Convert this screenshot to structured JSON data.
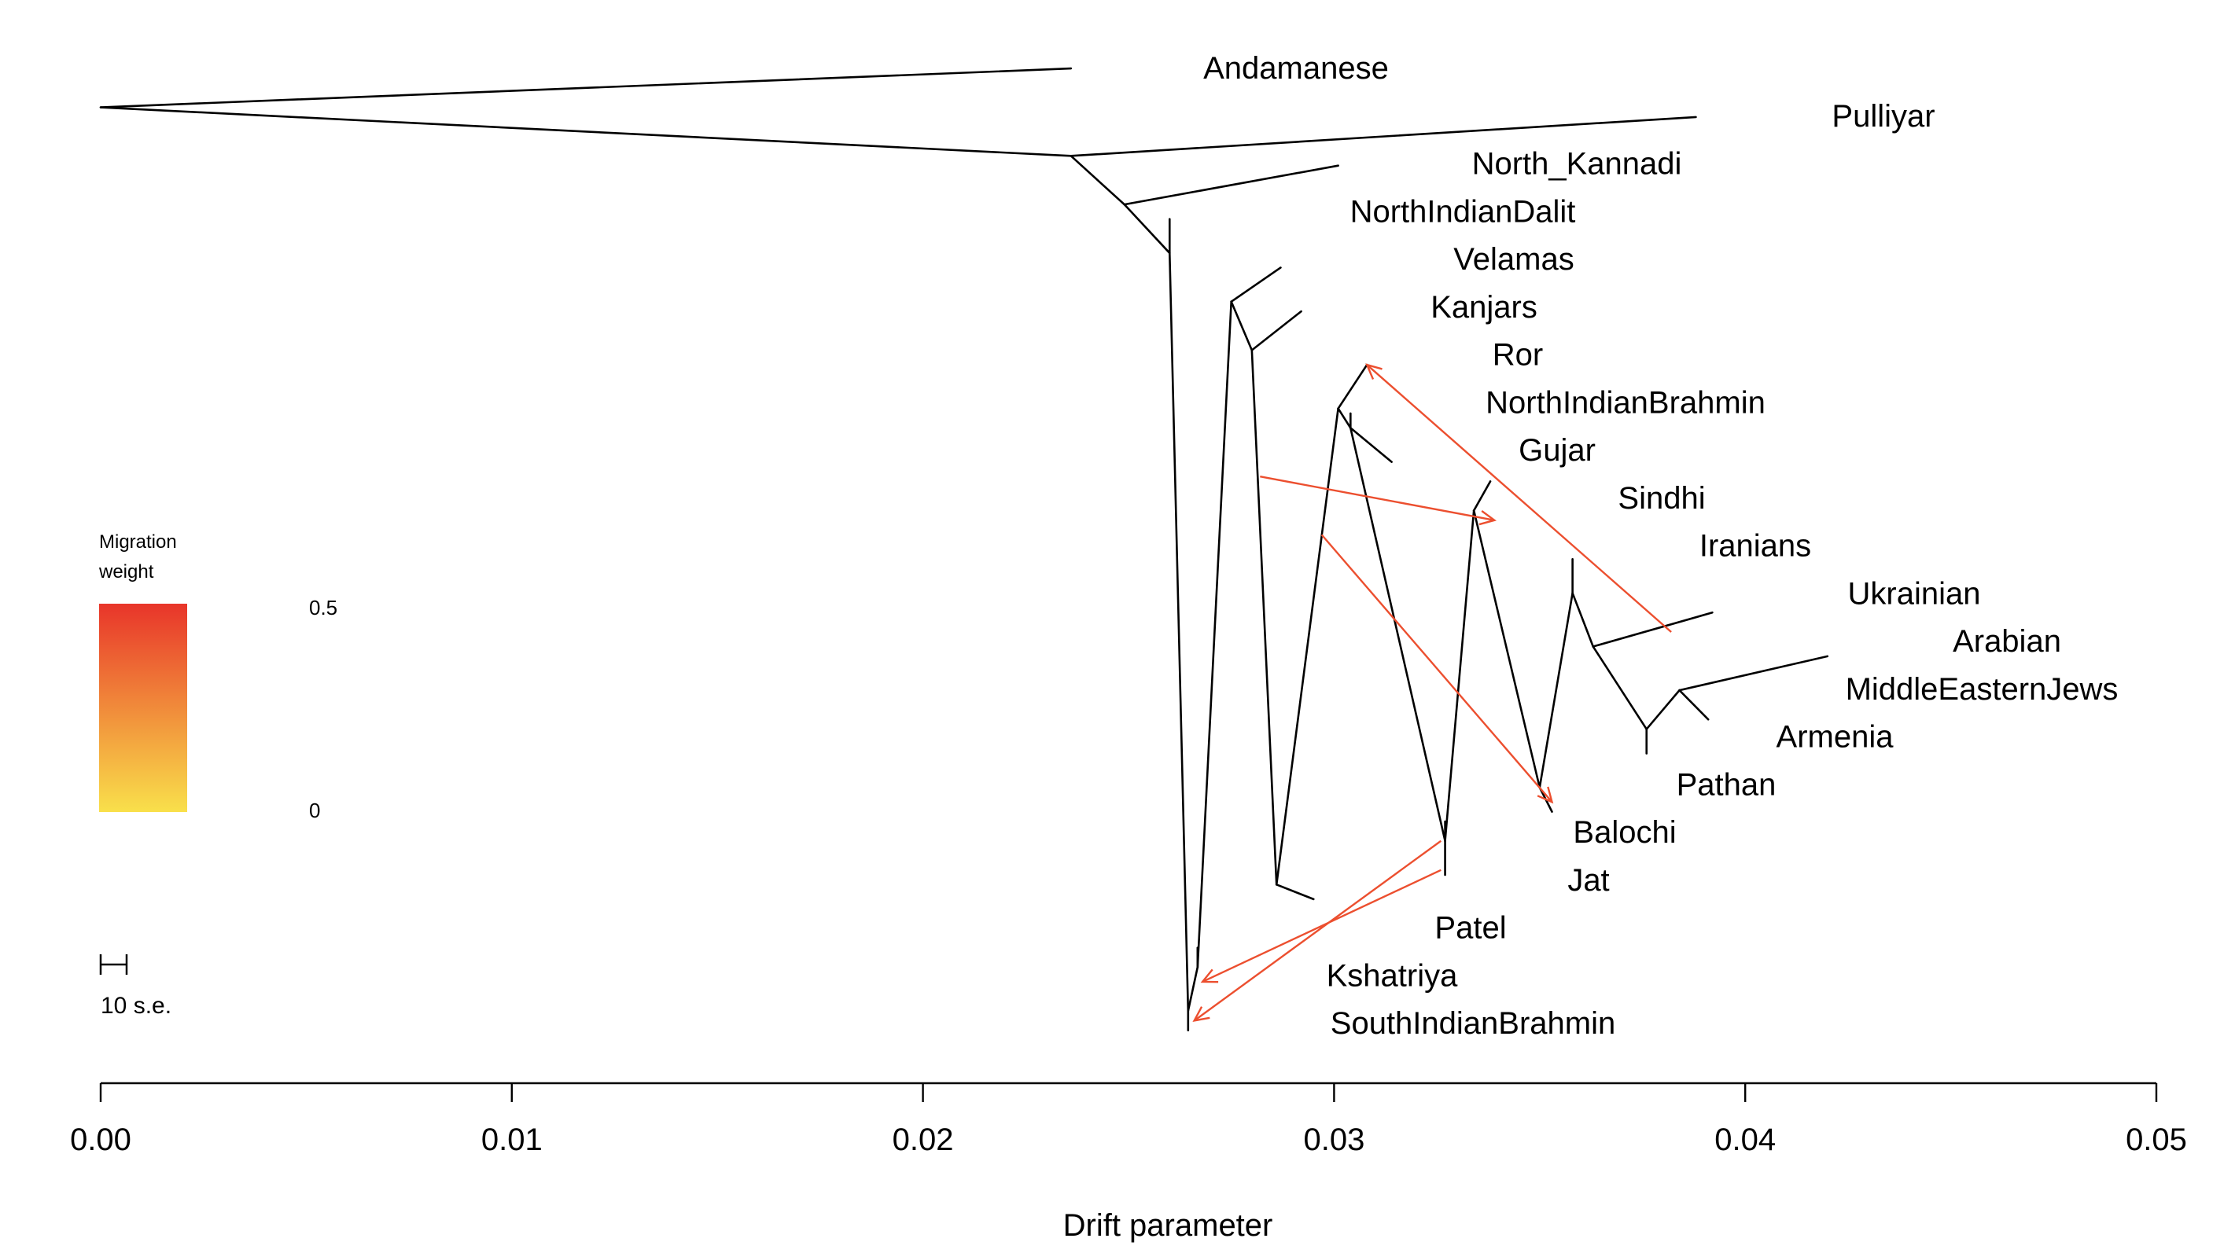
{
  "chart_data": {
    "type": "tree",
    "title": "",
    "xlabel": "Drift parameter",
    "xlim": [
      0.0,
      0.05
    ],
    "x_ticks": [
      0.0,
      0.01,
      0.02,
      0.03,
      0.04,
      0.05
    ],
    "x_tick_labels": [
      "0.00",
      "0.01",
      "0.02",
      "0.03",
      "0.04",
      "0.05"
    ],
    "legend": {
      "title_line1": "Migration",
      "title_line2": "weight",
      "max_label": "0.5",
      "min_label": "0",
      "color_low": "#f9e04b",
      "color_high": "#e8352a"
    },
    "scale_bar_label": "10 s.e.",
    "edge_color": "#000000",
    "migration_color": "#ec4f2f",
    "nodes": {
      "root": {
        "drift": 0.0,
        "row": 0.3
      },
      "n1": {
        "drift": 0.0236,
        "row": 1.3
      },
      "n2": {
        "drift": 0.0249,
        "row": 2.3
      },
      "n3": {
        "drift": 0.026,
        "row": 3.3
      },
      "n4": {
        "drift": 0.02645,
        "row": 18.9
      },
      "n5": {
        "drift": 0.02668,
        "row": 18.0
      },
      "n6": {
        "drift": 0.0275,
        "row": 4.3
      },
      "n7": {
        "drift": 0.028,
        "row": 5.3
      },
      "n8": {
        "drift": 0.0286,
        "row": 16.3
      },
      "n9": {
        "drift": 0.0301,
        "row": 6.5
      },
      "n10": {
        "drift": 0.0304,
        "row": 6.9
      },
      "n11": {
        "drift": 0.0327,
        "row": 15.4
      },
      "n12": {
        "drift": 0.0334,
        "row": 8.6
      },
      "n13": {
        "drift": 0.035,
        "row": 14.3
      },
      "n14": {
        "drift": 0.0358,
        "row": 10.3
      },
      "n15": {
        "drift": 0.0363,
        "row": 11.4
      },
      "n16": {
        "drift": 0.0376,
        "row": 13.1
      },
      "n17": {
        "drift": 0.0384,
        "row": 12.3
      }
    },
    "edges": [
      [
        "root",
        "n1"
      ],
      [
        "n1",
        "n2"
      ],
      [
        "n2",
        "n3"
      ],
      [
        "n3",
        "n4"
      ],
      [
        "n4",
        "n5"
      ],
      [
        "n5",
        "n6"
      ],
      [
        "n6",
        "n7"
      ],
      [
        "n7",
        "n8"
      ],
      [
        "n8",
        "n9"
      ],
      [
        "n9",
        "n10"
      ],
      [
        "n10",
        "n11"
      ],
      [
        "n11",
        "n12"
      ],
      [
        "n12",
        "n13"
      ],
      [
        "n13",
        "n14"
      ],
      [
        "n14",
        "n15"
      ],
      [
        "n15",
        "n16"
      ],
      [
        "n16",
        "n17"
      ]
    ],
    "tips": [
      {
        "name": "Andamanese",
        "parent": "root",
        "drift": 0.0236,
        "row": -0.5
      },
      {
        "name": "Pulliyar",
        "parent": "n1",
        "drift": 0.0388,
        "row": 0.5
      },
      {
        "name": "North_Kannadi",
        "parent": "n2",
        "drift": 0.0301,
        "row": 1.5
      },
      {
        "name": "NorthIndianDalit",
        "parent": "n3",
        "drift": 0.026,
        "row": 2.6
      },
      {
        "name": "Velamas",
        "parent": "n6",
        "drift": 0.0287,
        "row": 3.6
      },
      {
        "name": "Kanjars",
        "parent": "n7",
        "drift": 0.0292,
        "row": 4.5
      },
      {
        "name": "Ror",
        "parent": "n9",
        "drift": 0.0308,
        "row": 5.6
      },
      {
        "name": "NorthIndianBrahmin",
        "parent": "n10",
        "drift": 0.0304,
        "row": 6.6
      },
      {
        "name": "Gujar",
        "parent": "n10",
        "drift": 0.0314,
        "row": 7.6
      },
      {
        "name": "Sindhi",
        "parent": "n12",
        "drift": 0.0338,
        "row": 8.0
      },
      {
        "name": "Iranians",
        "parent": "n14",
        "drift": 0.0358,
        "row": 9.6
      },
      {
        "name": "Ukrainian",
        "parent": "n15",
        "drift": 0.0392,
        "row": 10.7
      },
      {
        "name": "Arabian",
        "parent": "n17",
        "drift": 0.042,
        "row": 11.6
      },
      {
        "name": "MiddleEasternJews",
        "parent": "n17",
        "drift": 0.0391,
        "row": 12.9
      },
      {
        "name": "Armenia",
        "parent": "n16",
        "drift": 0.0376,
        "row": 13.6
      },
      {
        "name": "Pathan",
        "parent": "n13",
        "drift": 0.0353,
        "row": 14.8
      },
      {
        "name": "Balochi",
        "parent": "n11",
        "drift": 0.0327,
        "row": 15.0
      },
      {
        "name": "Jat",
        "parent": "n11",
        "drift": 0.0327,
        "row": 16.1
      },
      {
        "name": "Patel",
        "parent": "n8",
        "drift": 0.0295,
        "row": 16.6
      },
      {
        "name": "Kshatriya",
        "parent": "n5",
        "drift": 0.02668,
        "row": 17.6
      },
      {
        "name": "SouthIndianBrahmin",
        "parent": "n4",
        "drift": 0.02645,
        "row": 19.3
      }
    ],
    "tip_label_order": [
      "Andamanese",
      "Pulliyar",
      "North_Kannadi",
      "NorthIndianDalit",
      "Velamas",
      "Kanjars",
      "Ror",
      "NorthIndianBrahmin",
      "Gujar",
      "Sindhi",
      "Iranians",
      "Ukrainian",
      "Arabian",
      "MiddleEasternJews",
      "Armenia",
      "Pathan",
      "Balochi",
      "Jat",
      "Patel",
      "Kshatriya",
      "SouthIndianBrahmin"
    ],
    "migrations": [
      {
        "from_drift": 0.0382,
        "from_row": 11.1,
        "to_drift": 0.0308,
        "to_row": 5.6,
        "weight": 0.4
      },
      {
        "from_drift": 0.0282,
        "from_row": 7.9,
        "to_drift": 0.0339,
        "to_row": 8.8,
        "weight": 0.45
      },
      {
        "from_drift": 0.0297,
        "from_row": 9.1,
        "to_drift": 0.0353,
        "to_row": 14.6,
        "weight": 0.45
      },
      {
        "from_drift": 0.0326,
        "from_row": 15.4,
        "to_drift": 0.0266,
        "to_row": 19.1,
        "weight": 0.45
      },
      {
        "from_drift": 0.0326,
        "from_row": 16.0,
        "to_drift": 0.0268,
        "to_row": 18.3,
        "weight": 0.45
      }
    ]
  }
}
